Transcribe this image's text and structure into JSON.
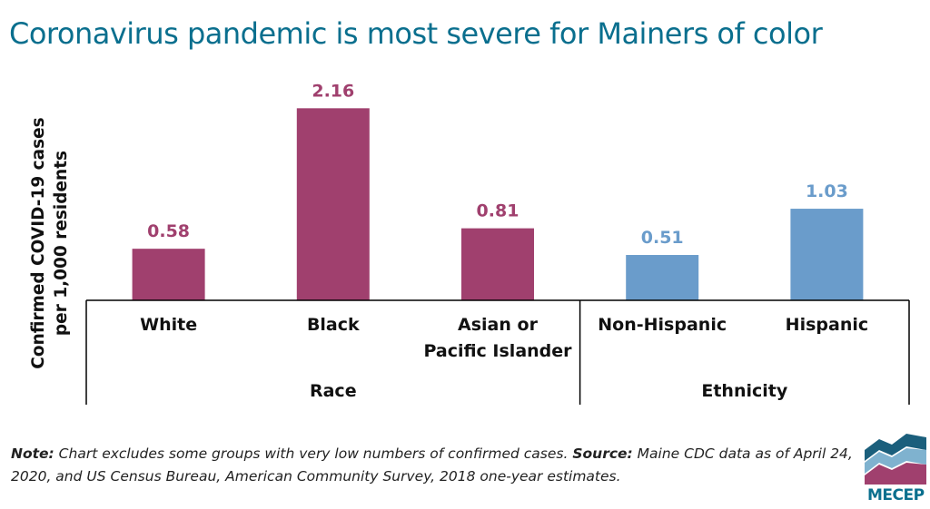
{
  "title": "Coronavirus pandemic is most severe for Mainers of color",
  "colors": {
    "title": "#0a6f8e",
    "race_bar": "#a0406e",
    "ethnicity_bar": "#6a9ccb",
    "axis": "#000000"
  },
  "chart_data": {
    "type": "bar",
    "ylabel": [
      "Confirmed COVID-19 cases",
      "per 1,000 residents"
    ],
    "ylim": [
      0,
      2.5
    ],
    "grid": false,
    "groups": [
      {
        "name": "Race",
        "color": "#a0406e",
        "categories": [
          [
            "White"
          ],
          [
            "Black"
          ],
          [
            "Asian or",
            "Pacific Islander"
          ]
        ],
        "values": [
          0.58,
          2.16,
          0.81
        ],
        "value_labels": [
          "0.58",
          "2.16",
          "0.81"
        ]
      },
      {
        "name": "Ethnicity",
        "color": "#6a9ccb",
        "categories": [
          [
            "Non-Hispanic"
          ],
          [
            "Hispanic"
          ]
        ],
        "values": [
          0.51,
          1.03
        ],
        "value_labels": [
          "0.51",
          "1.03"
        ]
      }
    ]
  },
  "footnote": {
    "note_label": "Note:",
    "note_text": " Chart excludes some groups with very low numbers of confirmed cases. ",
    "source_label": "Source:",
    "source_text": " Maine CDC data as of April 24, 2020, and US Census Bureau, American Community Survey, 2018 one-year estimates."
  },
  "logo": {
    "text": "MECEP",
    "icon": "mountain-waves-logo-icon"
  }
}
